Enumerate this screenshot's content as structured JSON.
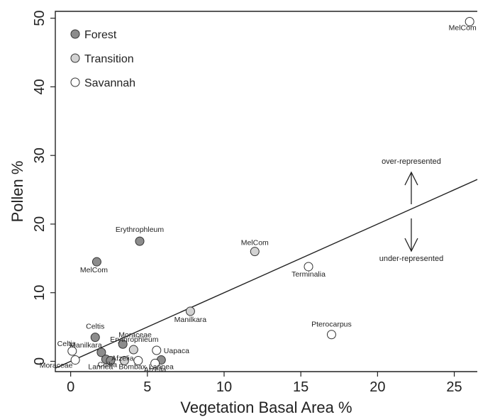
{
  "chart_data": {
    "type": "scatter",
    "xlabel": "Vegetation Basal Area %",
    "ylabel": "Pollen %",
    "xlim": [
      -1,
      26.5
    ],
    "ylim": [
      -1.5,
      51
    ],
    "xticks": [
      0,
      5,
      10,
      15,
      20,
      25
    ],
    "yticks": [
      0,
      10,
      20,
      30,
      40,
      50
    ],
    "grid": false,
    "legend_position": "top-left",
    "colors": {
      "Forest": "#8c8c8c",
      "Transition": "#d2d2d2",
      "Savannah": "#ffffff",
      "outline": "#333333"
    },
    "series": [
      {
        "name": "Forest",
        "points": [
          {
            "label": "Erythrophleum",
            "x": 4.5,
            "y": 17.5
          },
          {
            "label": "MelCom",
            "x": 1.7,
            "y": 14.5
          },
          {
            "label": "Celtis",
            "x": 1.6,
            "y": 3.5
          },
          {
            "label": "Moraceae",
            "x": 3.4,
            "y": 2.5
          },
          {
            "label": "Manilkara",
            "x": 2.0,
            "y": 1.3
          },
          {
            "label": "Ceiba",
            "x": 2.3,
            "y": 0.3
          },
          {
            "label": "Lannea",
            "x": 2.6,
            "y": 0.1
          },
          {
            "label": "Lannea",
            "x": 5.9,
            "y": 0.2
          }
        ]
      },
      {
        "name": "Transition",
        "points": [
          {
            "label": "MelCom",
            "x": 12.0,
            "y": 16.0
          },
          {
            "label": "Manilkara",
            "x": 7.8,
            "y": 7.3
          },
          {
            "label": "Erythrophleum",
            "x": 4.1,
            "y": 1.7
          },
          {
            "label": "Bombax",
            "x": 3.5,
            "y": 0.1
          }
        ]
      },
      {
        "name": "Savannah",
        "points": [
          {
            "label": "MelCom",
            "x": 26.0,
            "y": 49.5
          },
          {
            "label": "Terminalia",
            "x": 15.5,
            "y": 13.8
          },
          {
            "label": "Pterocarpus",
            "x": 17.0,
            "y": 3.9
          },
          {
            "label": "Uapaca",
            "x": 5.6,
            "y": 1.6
          },
          {
            "label": "Celtis",
            "x": 0.1,
            "y": 1.5
          },
          {
            "label": "Moraceae",
            "x": 0.3,
            "y": 0.2
          },
          {
            "label": "Afzelia",
            "x": 4.4,
            "y": 0.1
          },
          {
            "label": "Afzelia",
            "x": 5.5,
            "y": -0.3
          }
        ]
      }
    ],
    "line": {
      "type": "1:1 reference",
      "x": [
        -1,
        26.5
      ],
      "y": [
        -1,
        26.5
      ]
    },
    "annotations": [
      {
        "text": "over-represented",
        "x": 22.2,
        "y": 25.5
      },
      {
        "text": "under-represented",
        "x": 22.2,
        "y": 15.0
      }
    ]
  }
}
